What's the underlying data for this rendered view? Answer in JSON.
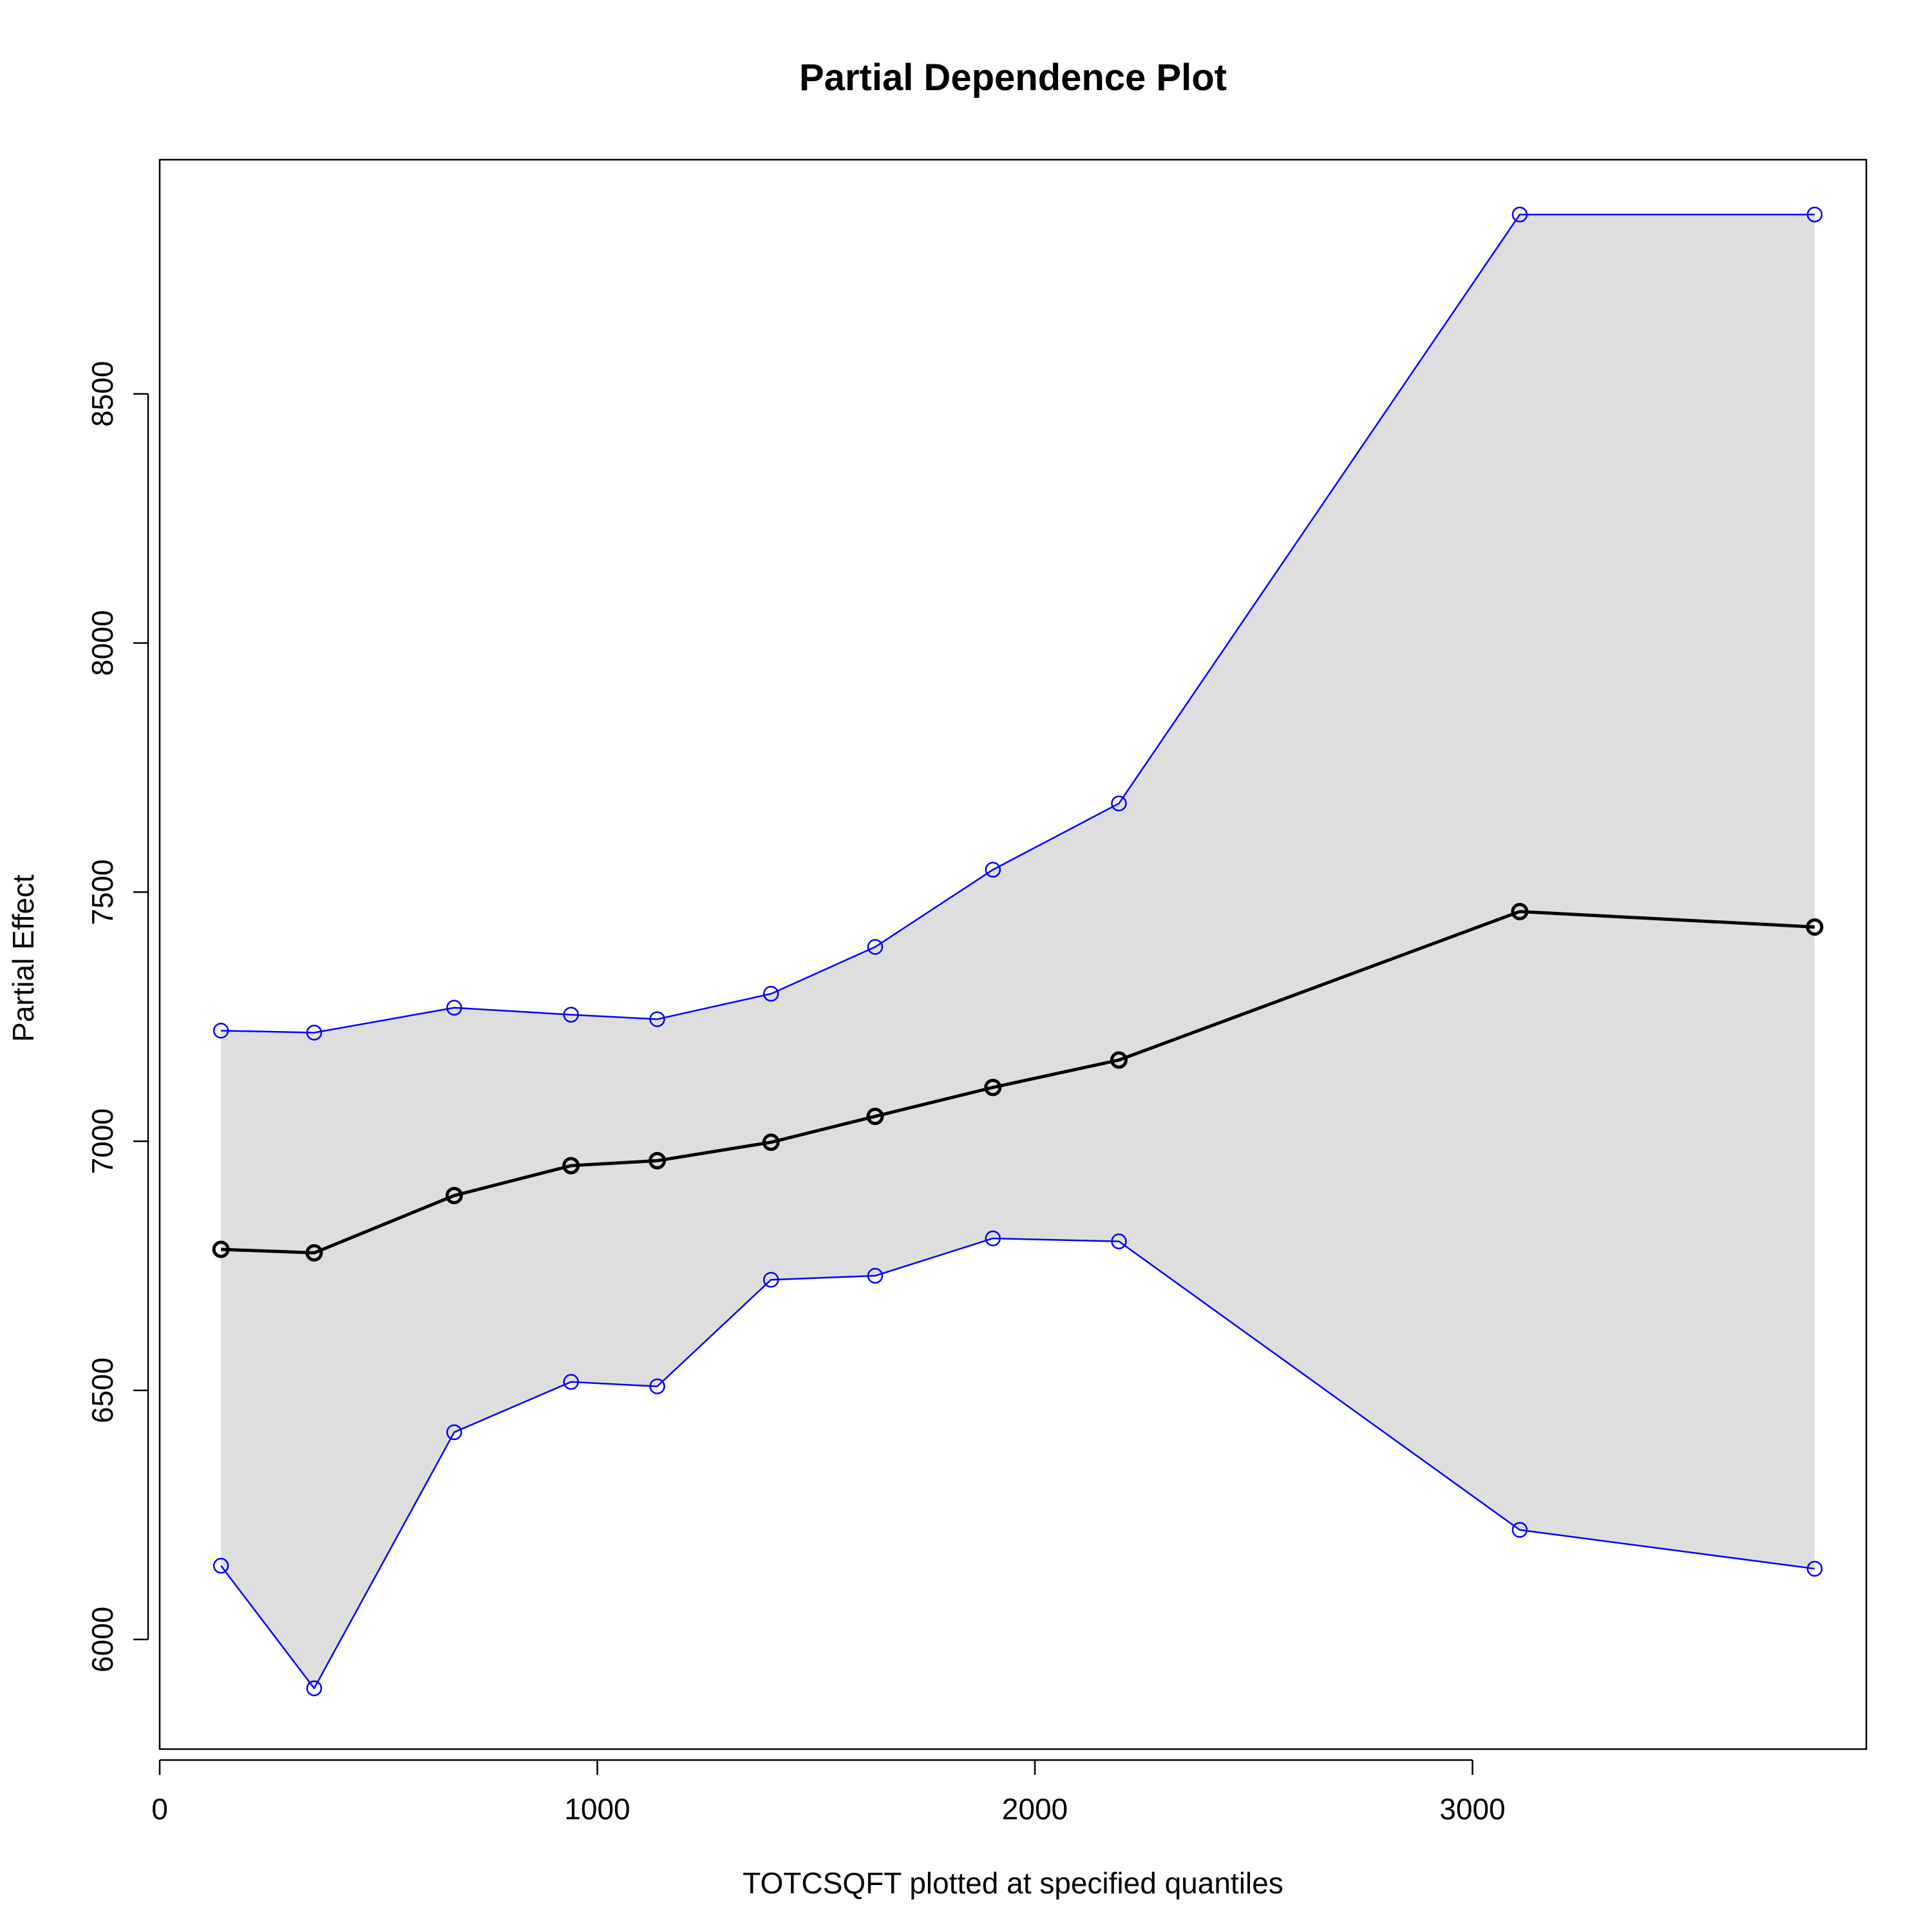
{
  "chart_data": {
    "type": "line",
    "title": "Partial Dependence Plot",
    "xlabel": "TOTCSQFT plotted at specified quantiles",
    "ylabel": "Partial Effect",
    "xlim": [
      0,
      3900
    ],
    "ylim": [
      5780,
      8970
    ],
    "x_ticks": [
      0,
      1000,
      2000,
      3000
    ],
    "y_ticks": [
      6000,
      6500,
      7000,
      7500,
      8000,
      8500
    ],
    "x_tick_labels": [
      "0",
      "1000",
      "2000",
      "3000"
    ],
    "y_tick_labels": [
      "6000",
      "6500",
      "7000",
      "7500",
      "8000",
      "8500"
    ],
    "grid": false,
    "legend": "none",
    "x": [
      140,
      353,
      673,
      940,
      1137,
      1397,
      1635,
      1904,
      2192,
      3108,
      3782
    ],
    "series": [
      {
        "role": "upper_band",
        "values": [
          7222,
          7218,
          7268,
          7254,
          7245,
          7296,
          7390,
          7545,
          7678,
          8860,
          8860
        ]
      },
      {
        "role": "partial_effect",
        "values": [
          6783,
          6776,
          6891,
          6951,
          6961,
          6998,
          7050,
          7108,
          7163,
          7461,
          7430
        ]
      },
      {
        "role": "lower_band",
        "values": [
          6148,
          5902,
          6416,
          6517,
          6508,
          6722,
          6730,
          6805,
          6799,
          6220,
          6142
        ]
      }
    ],
    "colors": {
      "band_fill": "#dedede",
      "band_line": "#0000ff",
      "main_line": "#000000",
      "axis": "#000000"
    }
  }
}
